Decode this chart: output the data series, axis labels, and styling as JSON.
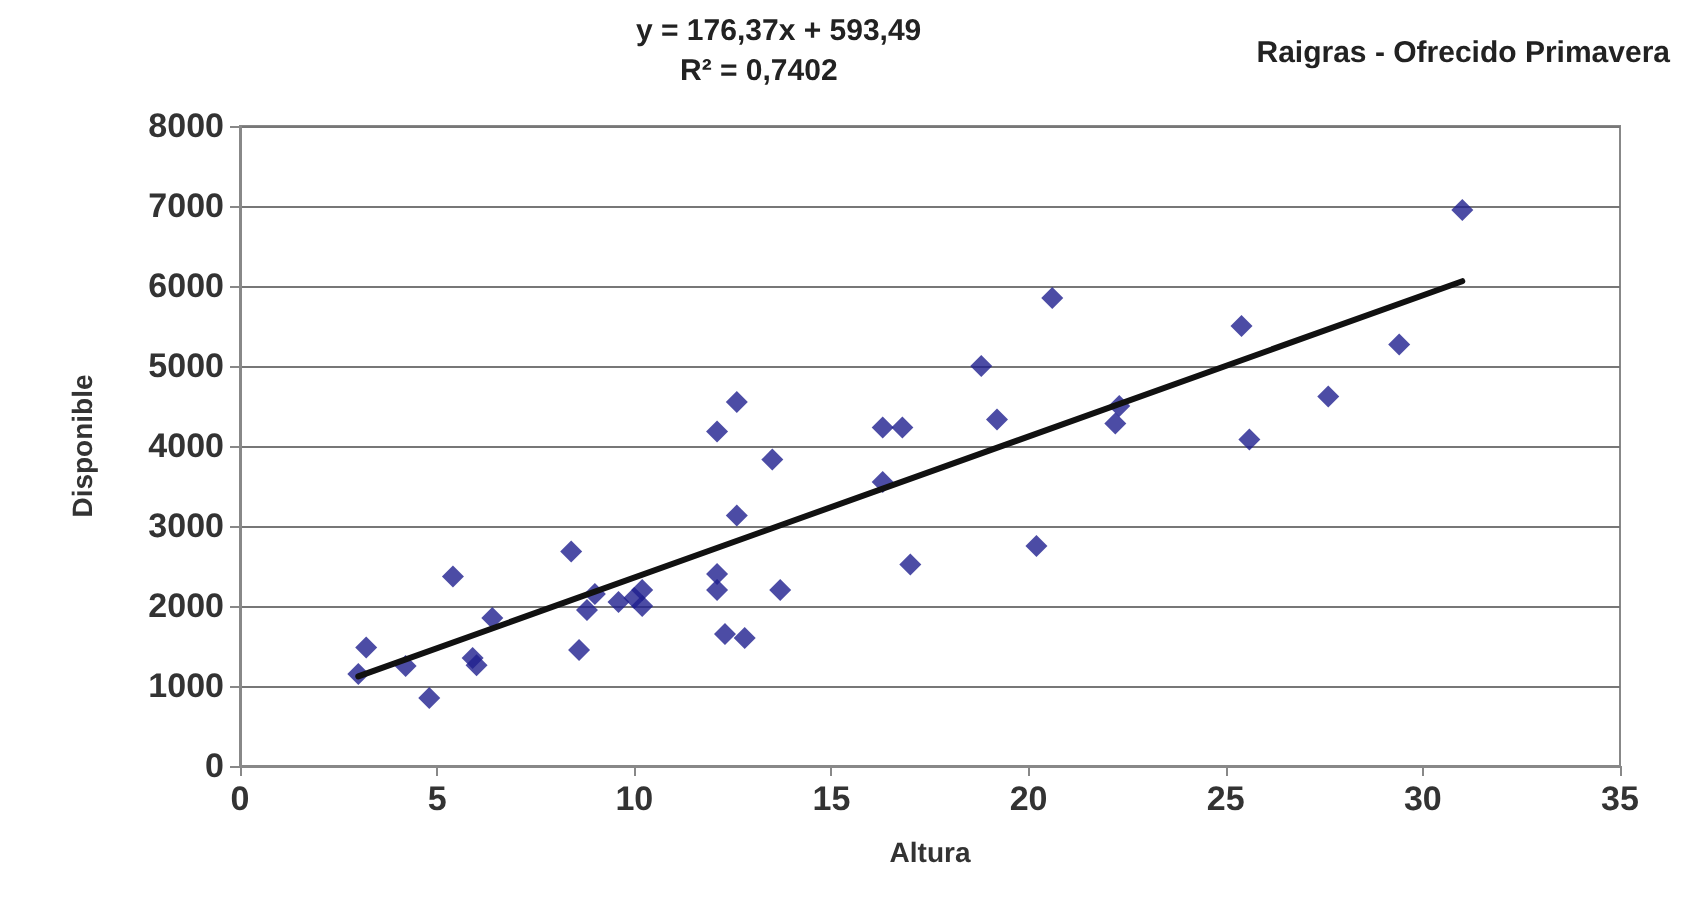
{
  "chart_data": {
    "type": "scatter",
    "title": "Raigras - Ofrecido Primavera",
    "xlabel": "Altura",
    "ylabel": "Disponible",
    "annotations": [
      "y = 176,37x + 593,49",
      "R² = 0,7402"
    ],
    "xlim": [
      0,
      35
    ],
    "xticks": [
      0,
      5,
      10,
      15,
      20,
      25,
      30,
      35
    ],
    "ylim": [
      0,
      8000
    ],
    "yticks": [
      0,
      1000,
      2000,
      3000,
      4000,
      5000,
      6000,
      7000,
      8000
    ],
    "grid": "y",
    "marker": "diamond",
    "series": [
      {
        "color": "#1f1f8f",
        "x": [
          3.0,
          3.2,
          4.2,
          4.8,
          5.4,
          5.9,
          6.0,
          6.4,
          8.4,
          8.6,
          8.8,
          9.0,
          9.6,
          10.0,
          10.2,
          10.2,
          12.1,
          12.1,
          12.1,
          12.3,
          12.6,
          12.6,
          12.8,
          13.5,
          13.7,
          16.3,
          16.3,
          16.8,
          17.0,
          18.8,
          19.2,
          20.2,
          20.6,
          22.2,
          22.3,
          25.4,
          25.6,
          27.6,
          29.4,
          31.0
        ],
        "values": [
          1150,
          1480,
          1250,
          850,
          2370,
          1350,
          1260,
          1850,
          2680,
          1450,
          1950,
          2150,
          2050,
          2100,
          2000,
          2200,
          4180,
          2400,
          2200,
          1650,
          4550,
          3130,
          1600,
          3830,
          2200,
          4230,
          3550,
          4230,
          2520,
          5000,
          4330,
          2750,
          5850,
          4280,
          4500,
          5500,
          4080,
          4620,
          5270,
          6950
        ]
      },
      {
        "type": "line",
        "color": "#111111",
        "x": [
          3,
          31
        ],
        "values": [
          1120,
          6060
        ],
        "marker": "none",
        "line_style": "solid"
      }
    ]
  }
}
